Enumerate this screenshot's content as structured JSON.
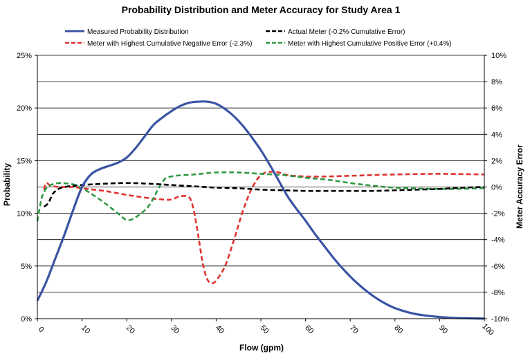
{
  "chart_data": {
    "type": "line",
    "title": "Probability Distribution and Meter Accuracy for Study Area 1",
    "xlabel": "Flow (gpm)",
    "ylabel_left": "Probability",
    "ylabel_right": "Meter Accuracy  Error",
    "xlim": [
      0,
      100
    ],
    "ylim_left": [
      0,
      25
    ],
    "ylim_right": [
      -10,
      10
    ],
    "x_ticks": [
      "0",
      "10",
      "20",
      "30",
      "40",
      "50",
      "60",
      "70",
      "80",
      "90",
      "100"
    ],
    "y_left_ticks": [
      "0%",
      "5%",
      "10%",
      "15%",
      "20%",
      "25%"
    ],
    "y_right_ticks": [
      "-10%",
      "-8%",
      "-6%",
      "-4%",
      "-2%",
      "0%",
      "2%",
      "4%",
      "6%",
      "8%",
      "10%"
    ],
    "grid": "horizontal",
    "legend_position": "top",
    "series": [
      {
        "name": "Measured Probability Distribution",
        "axis": "left",
        "color": "#3a54a4",
        "dash": "solid",
        "x": [
          0,
          2,
          4,
          6,
          8,
          10,
          12,
          14,
          16,
          18,
          20,
          22,
          24,
          26,
          28,
          30,
          32,
          34,
          36,
          38,
          40,
          42,
          44,
          46,
          48,
          50,
          52,
          54,
          56,
          58,
          60,
          62,
          64,
          66,
          68,
          70,
          72,
          74,
          76,
          78,
          80,
          82,
          84,
          86,
          88,
          90,
          92,
          94,
          96,
          98,
          100
        ],
        "y": [
          1.7,
          3.5,
          5.7,
          7.9,
          10.3,
          12.5,
          13.7,
          14.2,
          14.5,
          14.8,
          15.3,
          16.2,
          17.3,
          18.4,
          19.1,
          19.7,
          20.2,
          20.5,
          20.6,
          20.6,
          20.4,
          19.9,
          19.2,
          18.3,
          17.2,
          16.0,
          14.6,
          13.1,
          11.6,
          10.4,
          9.3,
          8.1,
          7.0,
          5.9,
          4.9,
          4.0,
          3.2,
          2.5,
          1.9,
          1.4,
          1.0,
          0.72,
          0.5,
          0.35,
          0.24,
          0.16,
          0.1,
          0.06,
          0.04,
          0.02,
          0.01
        ]
      },
      {
        "name": "Actual Meter (-0.2% Cumulative Error)",
        "axis": "right",
        "color": "#000000",
        "dash": "dashed",
        "x": [
          1.5,
          2.5,
          3.5,
          5,
          7,
          10,
          15,
          20,
          25,
          30,
          35,
          40,
          45,
          50,
          55,
          60,
          65,
          70,
          75,
          80,
          85,
          90,
          95,
          100
        ],
        "y": [
          -1.5,
          -1.2,
          -0.5,
          -0.1,
          0.05,
          0.15,
          0.25,
          0.3,
          0.25,
          0.15,
          0.05,
          -0.05,
          -0.1,
          -0.2,
          -0.25,
          -0.3,
          -0.3,
          -0.3,
          -0.3,
          -0.25,
          -0.2,
          -0.15,
          -0.05,
          0.0
        ]
      },
      {
        "name": "Meter with Highest Cumulative Negative Error (-2.3%)",
        "axis": "right",
        "color": "#e0322e",
        "dash": "dashed",
        "x": [
          1.5,
          2,
          3,
          5,
          8,
          10,
          15,
          20,
          25,
          28,
          30,
          32,
          34,
          35,
          36,
          37,
          38,
          39,
          40,
          42,
          44,
          46,
          48,
          50,
          52,
          54,
          56,
          60,
          65,
          70,
          80,
          90,
          100
        ],
        "y": [
          -0.2,
          0.3,
          0.1,
          0.0,
          0.0,
          -0.1,
          -0.3,
          -0.6,
          -0.85,
          -0.95,
          -0.95,
          -0.7,
          -0.8,
          -1.8,
          -3.7,
          -5.8,
          -7.0,
          -7.3,
          -7.1,
          -6.0,
          -4.0,
          -1.8,
          -0.1,
          0.9,
          1.15,
          1.1,
          0.9,
          0.8,
          0.8,
          0.85,
          0.95,
          1.0,
          0.95
        ]
      },
      {
        "name": "Meter with Highest Cumulative Positive Error (+0.4%)",
        "axis": "right",
        "color": "#2e9a44",
        "dash": "dashed",
        "x": [
          0,
          1,
          2,
          3,
          4,
          5,
          8,
          10,
          12,
          15,
          18,
          20,
          22,
          25,
          28,
          30,
          35,
          40,
          45,
          50,
          55,
          60,
          65,
          70,
          75,
          80,
          90,
          100
        ],
        "y": [
          -2.6,
          -0.8,
          -0.1,
          0.15,
          0.25,
          0.3,
          0.2,
          -0.1,
          -0.5,
          -1.2,
          -2.0,
          -2.5,
          -2.3,
          -1.4,
          0.4,
          0.8,
          0.95,
          1.1,
          1.1,
          1.0,
          0.9,
          0.7,
          0.55,
          0.3,
          0.1,
          -0.05,
          -0.15,
          -0.1
        ]
      }
    ]
  }
}
